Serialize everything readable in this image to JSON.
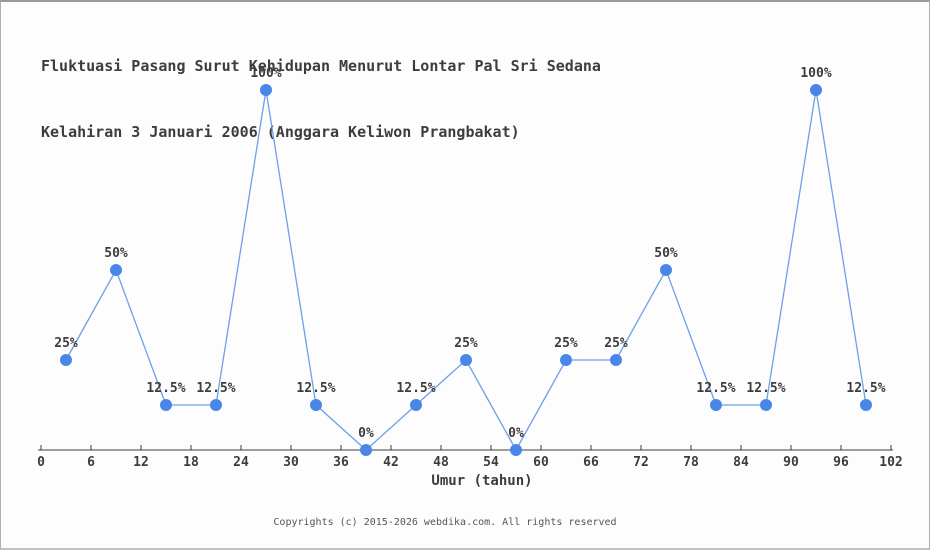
{
  "page": {
    "title_line1": "Fluktuasi Pasang Surut Kehidupan Menurut Lontar Pal Sri Sedana",
    "title_line2": "Kelahiran 3 Januari 2006 (Anggara Keliwon Prangbakat)",
    "footer": "Copyrights (c) 2015-2026 webdika.com. All rights reserved"
  },
  "chart_data": {
    "type": "line",
    "title": "Fluktuasi Pasang Surut Kehidupan Menurut Lontar Pal Sri Sedana Kelahiran 3 Januari 2006 (Anggara Keliwon Prangbakat)",
    "xlabel": "Umur (tahun)",
    "ylabel": "",
    "x": [
      3,
      9,
      15,
      21,
      27,
      33,
      39,
      45,
      51,
      57,
      63,
      69,
      75,
      81,
      87,
      93,
      99
    ],
    "values": [
      25,
      50,
      12.5,
      12.5,
      100,
      12.5,
      0,
      12.5,
      25,
      0,
      25,
      25,
      50,
      12.5,
      12.5,
      100,
      12.5
    ],
    "point_labels": [
      "25%",
      "50%",
      "12.5%",
      "12.5%",
      "100%",
      "12.5%",
      "0%",
      "12.5%",
      "25%",
      "0%",
      "25%",
      "25%",
      "50%",
      "12.5%",
      "12.5%",
      "100%",
      "12.5%"
    ],
    "x_ticks": [
      0,
      6,
      12,
      18,
      24,
      30,
      36,
      42,
      48,
      54,
      60,
      66,
      72,
      78,
      84,
      90,
      96,
      102
    ],
    "xlim": [
      0,
      102
    ],
    "ylim": [
      0,
      100
    ],
    "grid": false,
    "legend": null,
    "colors": {
      "marker": "#4a86e8",
      "line": "#6d9eeb",
      "axis": "#3c3c3c",
      "label": "#3c3c3c"
    }
  }
}
